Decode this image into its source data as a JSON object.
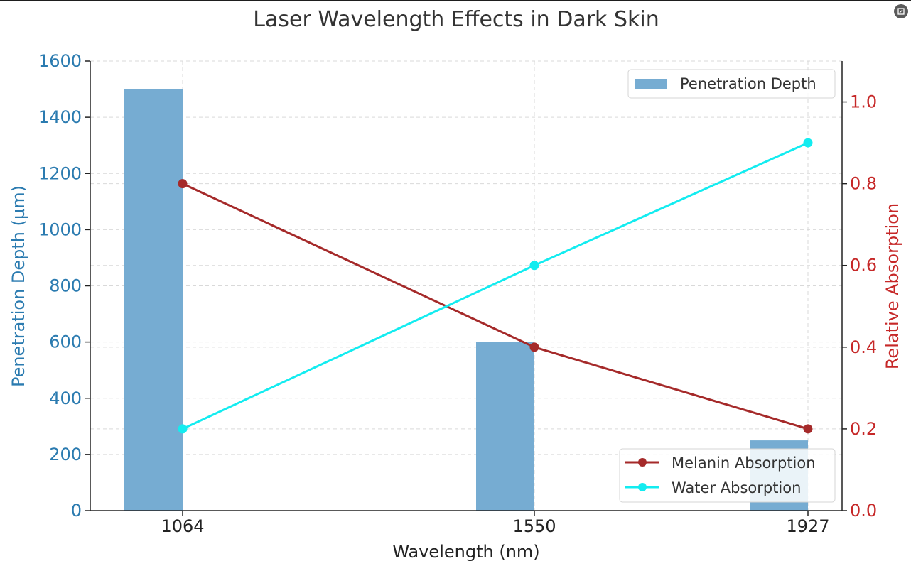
{
  "chart_data": {
    "type": "bar+line",
    "title": "Laser Wavelength Effects in Dark Skin",
    "xlabel": "Wavelength (nm)",
    "ylabel_left": "Penetration Depth (µm)",
    "ylabel_right": "Relative Absorption",
    "categories": [
      "1064",
      "1550",
      "1927"
    ],
    "x": [
      1064,
      1550,
      1927
    ],
    "ylim_left": [
      0,
      1600
    ],
    "ylim_right": [
      0.0,
      1.1
    ],
    "yticks_left": [
      "0",
      "200",
      "400",
      "600",
      "800",
      "1000",
      "1200",
      "1400",
      "1600"
    ],
    "yticks_right": [
      "0.0",
      "0.2",
      "0.4",
      "0.6",
      "0.8",
      "1.0"
    ],
    "grid": true,
    "bars": {
      "name": "Penetration Depth",
      "values": [
        1500,
        600,
        250
      ],
      "color": "#76acd2"
    },
    "series": [
      {
        "name": "Melanin Absorption",
        "values": [
          0.8,
          0.4,
          0.2
        ],
        "color": "#a52a2a"
      },
      {
        "name": "Water Absorption",
        "values": [
          0.2,
          0.6,
          0.9
        ],
        "color": "#13ecf0"
      }
    ],
    "legend_bars_position": "top-right",
    "legend_lines_position": "bottom-right",
    "colors": {
      "left_axis": "#2b7bb0",
      "right_axis": "#c62828"
    }
  },
  "ui": {
    "expand_icon": "expand-icon"
  }
}
